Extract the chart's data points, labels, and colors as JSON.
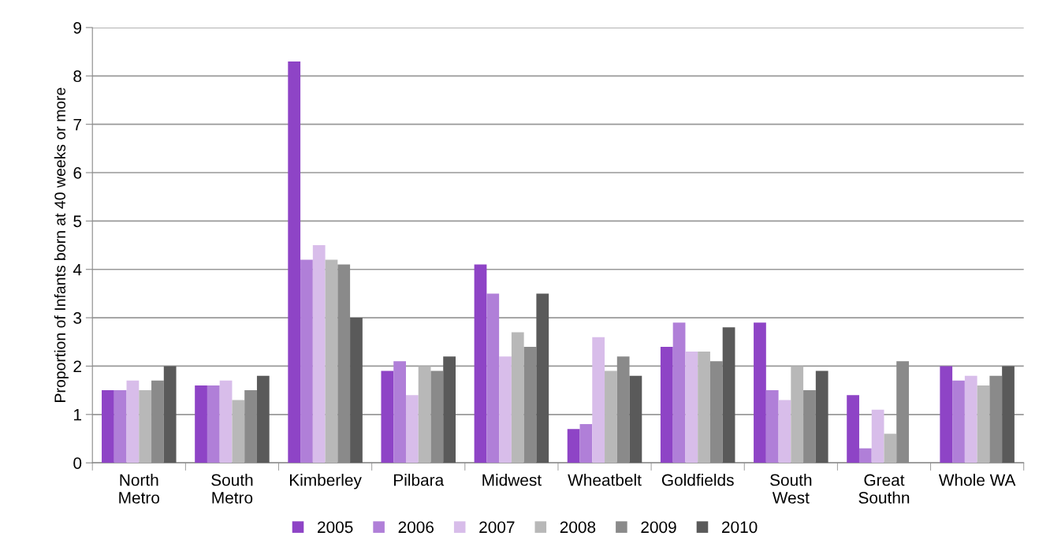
{
  "chart_data": {
    "type": "bar",
    "ylabel": "Proportion of Infants born at 40 weeks or more",
    "categories": [
      "North\nMetro",
      "South\nMetro",
      "Kimberley",
      "Pilbara",
      "Midwest",
      "Wheatbelt",
      "Goldfields",
      "South\nWest",
      "Great\nSouthn",
      "Whole WA"
    ],
    "series": [
      {
        "name": "2005",
        "color": "#8e44c6",
        "values": [
          1.5,
          1.6,
          8.3,
          1.9,
          4.1,
          0.7,
          2.4,
          2.9,
          1.4,
          2.0
        ]
      },
      {
        "name": "2006",
        "color": "#b07fd8",
        "values": [
          1.5,
          1.6,
          4.2,
          2.1,
          3.5,
          0.8,
          2.9,
          1.5,
          0.3,
          1.7
        ]
      },
      {
        "name": "2007",
        "color": "#d8bdea",
        "values": [
          1.7,
          1.7,
          4.5,
          1.4,
          2.2,
          2.6,
          2.3,
          1.3,
          1.1,
          1.8
        ]
      },
      {
        "name": "2008",
        "color": "#b8b8b8",
        "values": [
          1.5,
          1.3,
          4.2,
          2.0,
          2.7,
          1.9,
          2.3,
          2.0,
          0.6,
          1.6
        ]
      },
      {
        "name": "2009",
        "color": "#8a8a8a",
        "values": [
          1.7,
          1.5,
          4.1,
          1.9,
          2.4,
          2.2,
          2.1,
          1.5,
          2.1,
          1.8
        ]
      },
      {
        "name": "2010",
        "color": "#5a5a5a",
        "values": [
          2.0,
          1.8,
          3.0,
          2.2,
          3.5,
          1.8,
          2.8,
          1.9,
          null,
          2.0
        ]
      }
    ],
    "ylim": [
      0,
      9
    ],
    "yticks": [
      0,
      1,
      2,
      3,
      4,
      5,
      6,
      7,
      8,
      9
    ],
    "grid": "y",
    "legend": "bottom"
  }
}
